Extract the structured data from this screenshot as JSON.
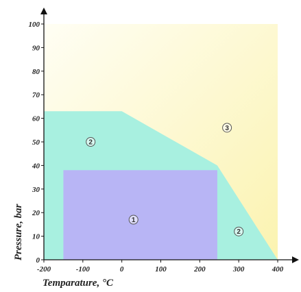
{
  "chart_data": {
    "type": "area",
    "title": "",
    "xlabel": "Temparature, ",
    "xlabel_unit": "°C",
    "ylabel": "Pressure, bar",
    "xlim": [
      -200,
      400
    ],
    "ylim": [
      0,
      100
    ],
    "x_ticks": [
      -200,
      -100,
      0,
      100,
      200,
      300,
      400
    ],
    "y_ticks": [
      0,
      10,
      20,
      30,
      40,
      50,
      60,
      70,
      80,
      90,
      100
    ],
    "grid": false,
    "regions": [
      {
        "name": "3",
        "label": "3",
        "color": "#fdf5b8",
        "points": [
          [
            -200,
            100
          ],
          [
            400,
            100
          ],
          [
            400,
            0
          ],
          [
            -200,
            0
          ]
        ],
        "label_at": [
          270,
          56
        ]
      },
      {
        "name": "2",
        "label": "2",
        "color": "#a8f0e0",
        "points": [
          [
            -200,
            63
          ],
          [
            0,
            63
          ],
          [
            245,
            40
          ],
          [
            400,
            0
          ],
          [
            -200,
            0
          ]
        ],
        "label_at": [
          -80,
          50
        ]
      },
      {
        "name": "1",
        "label": "1",
        "color": "#b8b5f5",
        "points": [
          [
            -150,
            38
          ],
          [
            245,
            38
          ],
          [
            245,
            0
          ],
          [
            -150,
            0
          ]
        ],
        "label_at": [
          30,
          17
        ]
      }
    ],
    "extra_labels": [
      {
        "label": "2",
        "at": [
          300,
          12
        ]
      }
    ],
    "colors": {
      "top": "#fdf5b8",
      "axis": "#111111"
    }
  }
}
